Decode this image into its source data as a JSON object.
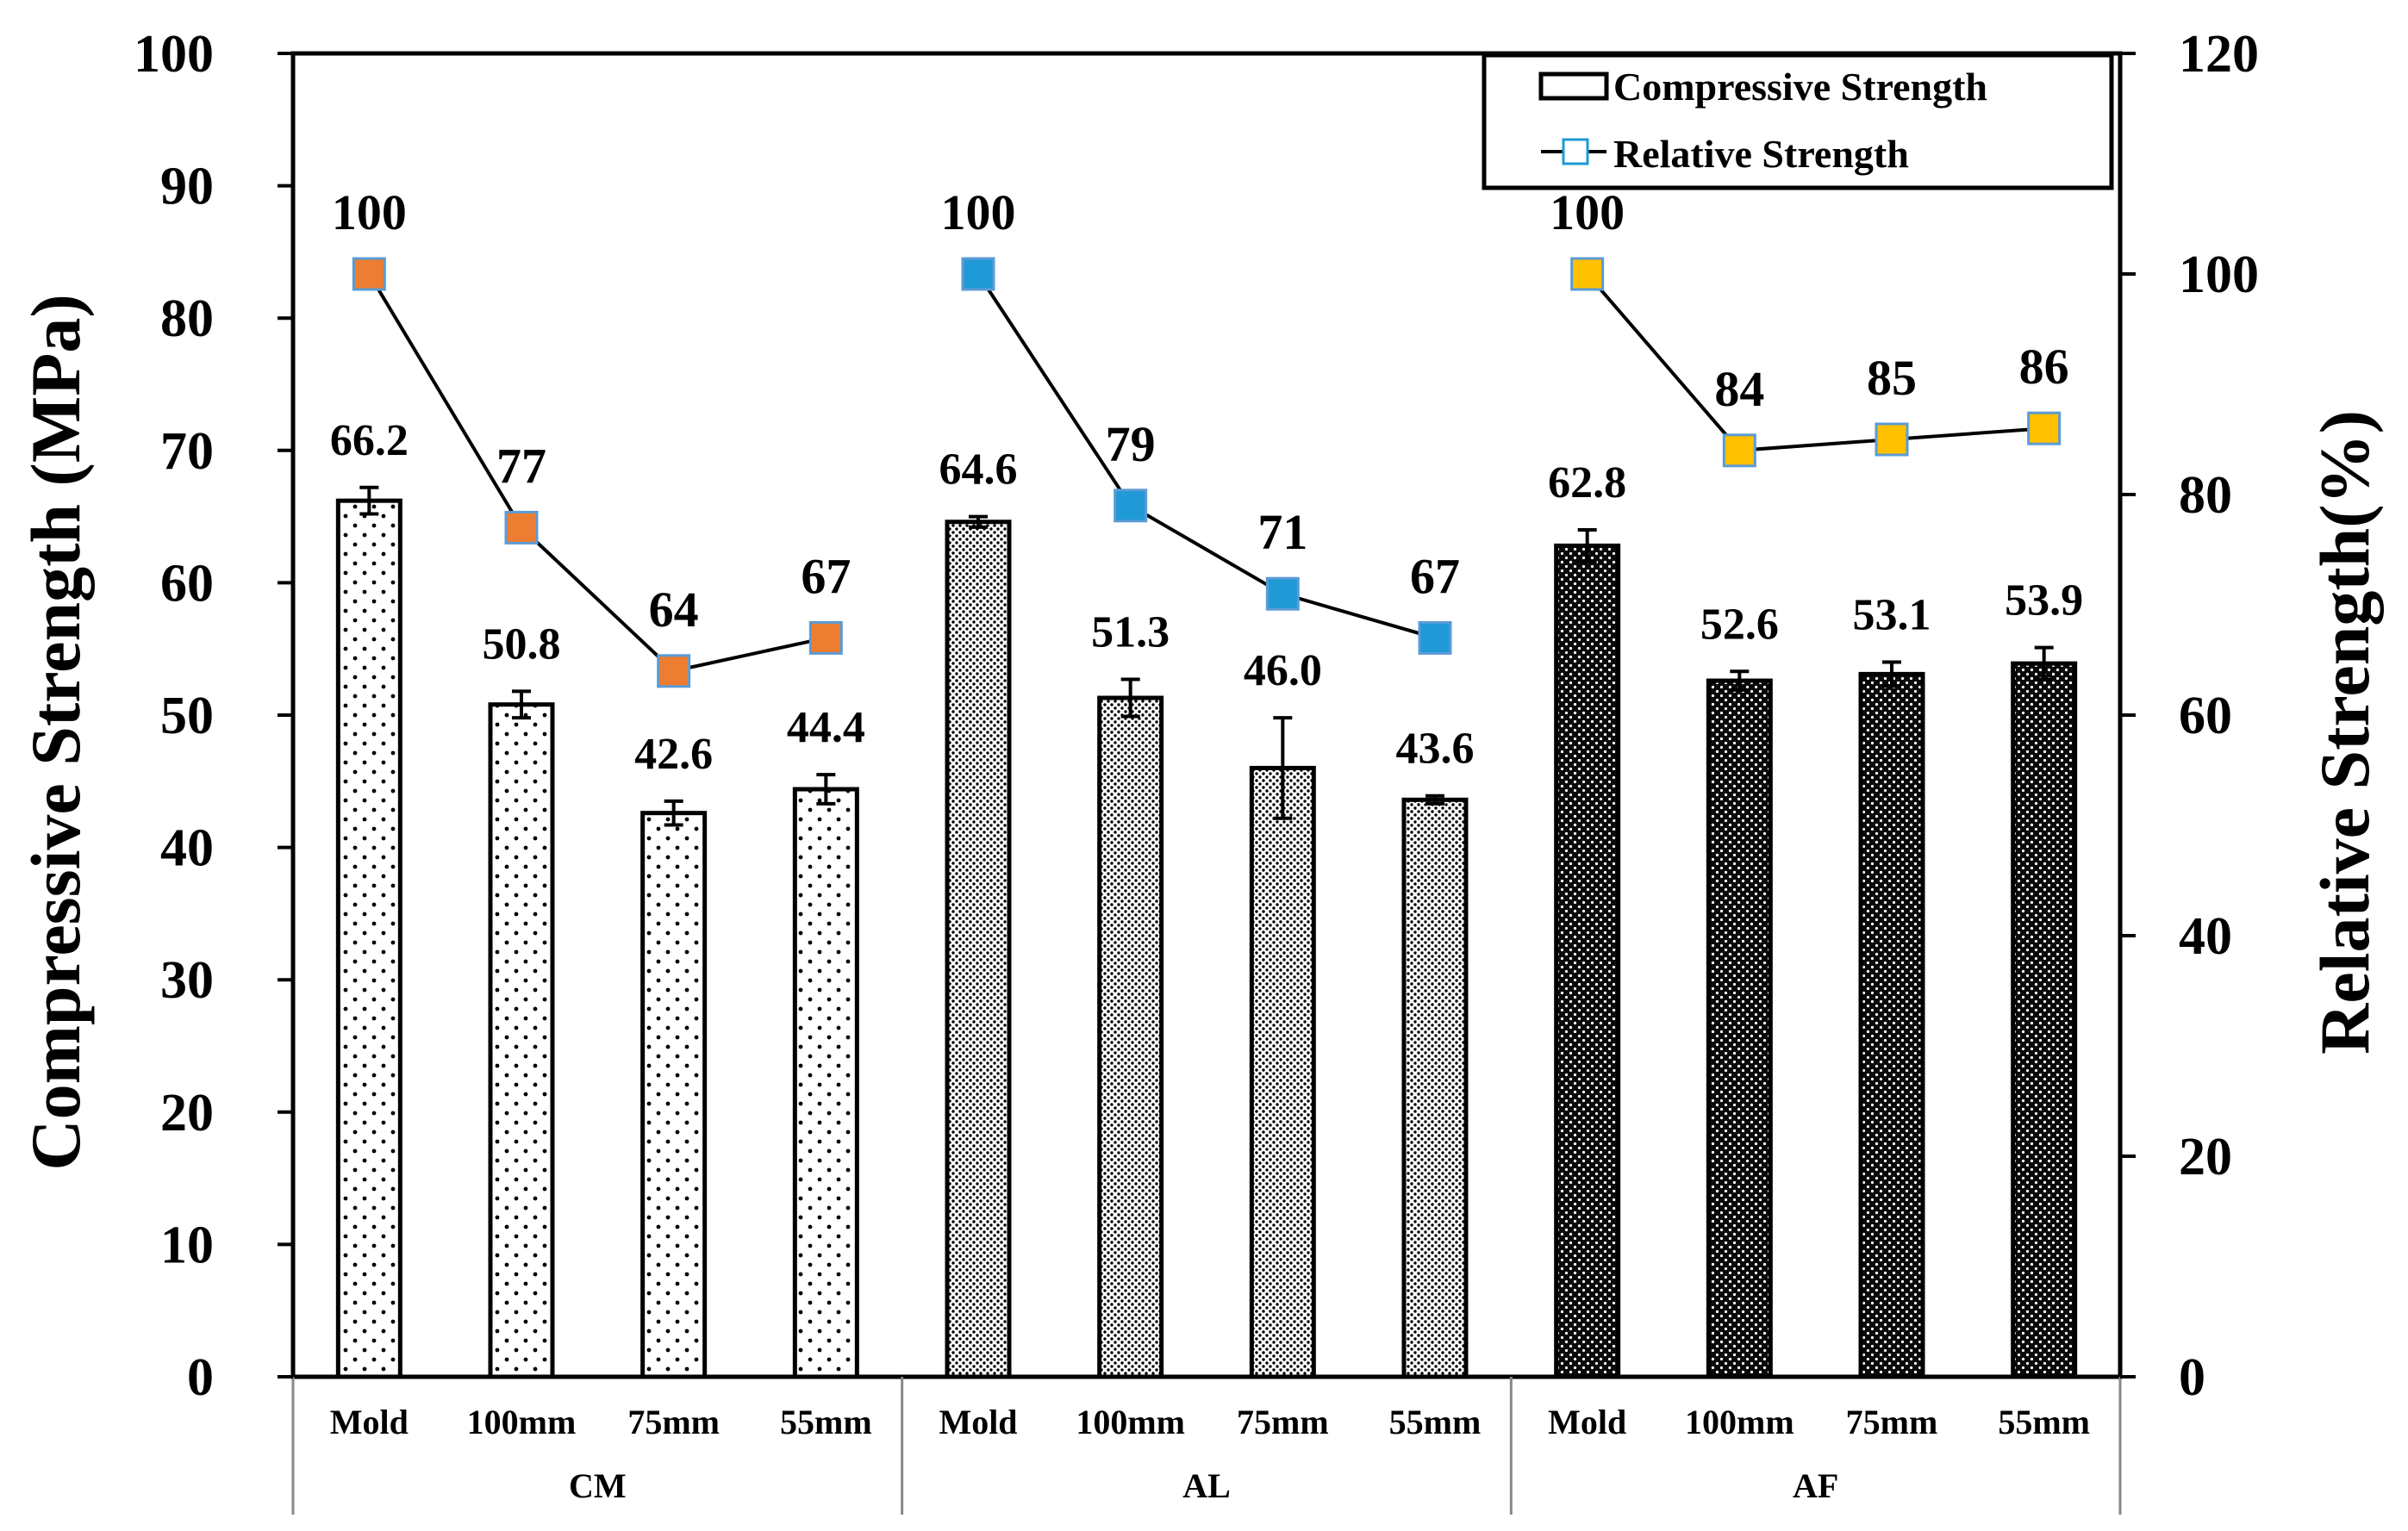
{
  "chart_data": {
    "type": "bar",
    "categories": [
      "Mold",
      "100mm",
      "75mm",
      "55mm",
      "Mold",
      "100mm",
      "75mm",
      "55mm",
      "Mold",
      "100mm",
      "75mm",
      "55mm"
    ],
    "groups": [
      {
        "name": "CM",
        "bar_pattern": "sparse-dots",
        "marker_color": "#ED7D31"
      },
      {
        "name": "AL",
        "bar_pattern": "fine-dots",
        "marker_color": "#1F9AD6"
      },
      {
        "name": "AF",
        "bar_pattern": "dark-dots",
        "marker_color": "#FFC000"
      }
    ],
    "series": [
      {
        "name": "Compressive Strength",
        "type": "bar",
        "axis": "left",
        "values": [
          66.2,
          50.8,
          42.6,
          44.4,
          64.6,
          51.3,
          46.0,
          43.6,
          62.8,
          52.6,
          53.1,
          53.9
        ],
        "labels": [
          "66.2",
          "50.8",
          "42.6",
          "44.4",
          "64.6",
          "51.3",
          "46.0",
          "43.6",
          "62.8",
          "52.6",
          "53.1",
          "53.9"
        ],
        "error": [
          1.0,
          1.0,
          0.9,
          1.1,
          0.4,
          1.4,
          3.8,
          0.3,
          1.2,
          0.7,
          0.9,
          1.2
        ]
      },
      {
        "name": "Relative Strength",
        "type": "line",
        "axis": "right",
        "values": [
          100,
          77,
          64,
          67,
          100,
          79,
          71,
          67,
          100,
          84,
          85,
          86
        ],
        "labels": [
          "100",
          "77",
          "64",
          "67",
          "100",
          "79",
          "71",
          "67",
          "100",
          "84",
          "85",
          "86"
        ]
      }
    ],
    "ylabel": "Compressive Strength (MPa)",
    "y2label": "Relative Strength(%)",
    "ylim": [
      0,
      100
    ],
    "y2lim": [
      0,
      120
    ],
    "yticks": [
      0,
      10,
      20,
      30,
      40,
      50,
      60,
      70,
      80,
      90,
      100
    ],
    "y2ticks": [
      0,
      20,
      40,
      60,
      80,
      100,
      120
    ],
    "grid": false,
    "legend_position": "top-right",
    "legend": [
      "Compressive Strength",
      "Relative Strength"
    ]
  }
}
